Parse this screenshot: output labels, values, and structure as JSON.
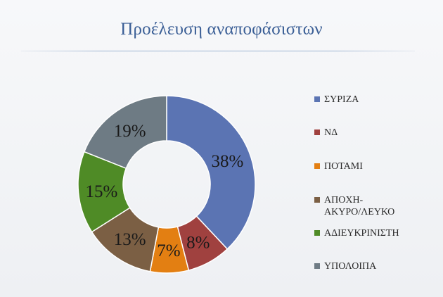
{
  "slide": {
    "title": "Προέλευση αναποφάσιστων"
  },
  "chart_data": {
    "type": "pie",
    "variant": "donut",
    "title": "Προέλευση αναποφάσιστων",
    "legend_position": "right",
    "categories": [
      "ΣΥΡΙΖΑ",
      "ΝΔ",
      "ΠΟΤΑΜΙ",
      "ΑΠΟΧΗ-\nΑΚΥΡΟ/ΛΕΥΚΟ",
      "ΑΔΙΕΥΚΡΙΝΙΣΤΗ",
      "ΥΠΟΛΟΙΠΑ"
    ],
    "values": [
      38,
      8,
      7,
      13,
      15,
      19
    ],
    "labels": [
      "38%",
      "8%",
      "7%",
      "13%",
      "15%",
      "19%"
    ],
    "colors": [
      "#5b74b3",
      "#a0413f",
      "#e37f12",
      "#7b5f44",
      "#4f8b26",
      "#6e7b84"
    ]
  }
}
